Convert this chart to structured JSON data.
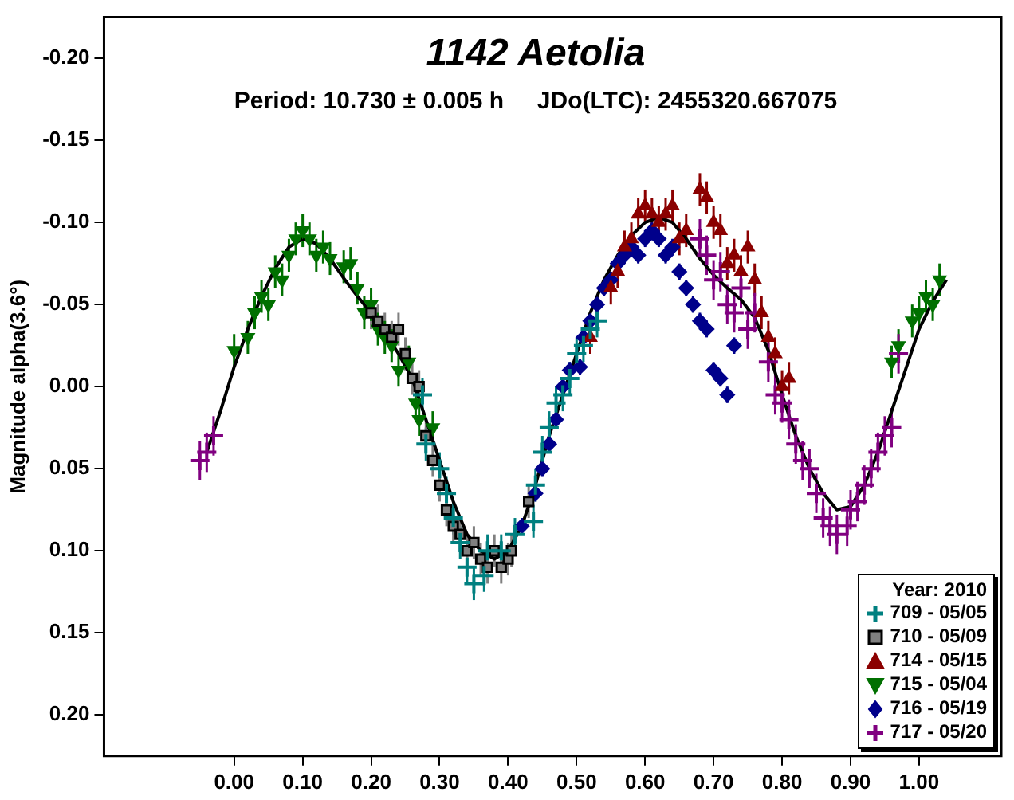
{
  "chart_data": {
    "type": "scatter",
    "title": "1142 Aetolia",
    "subtitle": "Period: 10.730 ± 0.005 h     JDo(LTC): 2455320.667075",
    "ylabel": "Magnitude alpha(3.6°)",
    "legend_title": "Year: 2010",
    "legend": "bottom right",
    "grid": false,
    "xlim": [
      -0.19,
      1.12
    ],
    "ylim": [
      0.225,
      -0.225
    ],
    "xticks": [
      {
        "value": 0,
        "label": "0.00"
      },
      {
        "value": 0.1,
        "label": "0.10"
      },
      {
        "value": 0.2,
        "label": "0.20"
      },
      {
        "value": 0.3,
        "label": "0.30"
      },
      {
        "value": 0.4,
        "label": "0.40"
      },
      {
        "value": 0.5,
        "label": "0.50"
      },
      {
        "value": 0.6,
        "label": "0.60"
      },
      {
        "value": 0.7,
        "label": "0.70"
      },
      {
        "value": 0.8,
        "label": "0.80"
      },
      {
        "value": 0.9,
        "label": "0.90"
      },
      {
        "value": 1,
        "label": "1.00"
      }
    ],
    "yticks": [
      {
        "value": -0.2,
        "label": "-0.20"
      },
      {
        "value": -0.15,
        "label": "-0.15"
      },
      {
        "value": -0.1,
        "label": "-0.10"
      },
      {
        "value": -0.05,
        "label": "-0.05"
      },
      {
        "value": 0,
        "label": "0.00"
      },
      {
        "value": 0.05,
        "label": "0.05"
      },
      {
        "value": 0.1,
        "label": "0.10"
      },
      {
        "value": 0.15,
        "label": "0.15"
      },
      {
        "value": 0.2,
        "label": "0.20"
      }
    ],
    "series": [
      {
        "name": "709 - 05/05",
        "color": "#008080",
        "marker": "cross",
        "x": [
          0.275,
          0.28,
          0.3,
          0.31,
          0.32,
          0.33,
          0.34,
          0.35,
          0.365,
          0.37,
          0.39,
          0.41,
          0.437,
          0.44,
          0.45,
          0.46,
          0.47,
          0.48,
          0.49,
          0.5,
          0.51,
          0.52,
          0.53
        ],
        "values": [
          0.005,
          0.035,
          0.05,
          0.065,
          0.08,
          0.095,
          0.11,
          0.12,
          0.115,
          0.1,
          0.1,
          0.09,
          0.082,
          0.06,
          0.04,
          0.025,
          0.01,
          0.005,
          -0.005,
          -0.02,
          -0.025,
          -0.035,
          -0.04
        ],
        "errors": [
          0.01,
          0.01,
          0.01,
          0.01,
          0.01,
          0.01,
          0.01,
          0.01,
          0.01,
          0.01,
          0.01,
          0.01,
          0.01,
          0.01,
          0.01,
          0.01,
          0.01,
          0.01,
          0.01,
          0.01,
          0.01,
          0.01,
          0.01
        ]
      },
      {
        "name": "710 - 05/09",
        "color": "#808080",
        "marker": "square",
        "x": [
          0.2,
          0.21,
          0.22,
          0.23,
          0.24,
          0.25,
          0.26,
          0.27,
          0.28,
          0.29,
          0.3,
          0.31,
          0.32,
          0.33,
          0.34,
          0.35,
          0.36,
          0.37,
          0.38,
          0.39,
          0.4,
          0.405,
          0.43
        ],
        "values": [
          -0.045,
          -0.04,
          -0.035,
          -0.03,
          -0.035,
          -0.02,
          -0.005,
          0.0,
          0.03,
          0.045,
          0.06,
          0.075,
          0.085,
          0.09,
          0.1,
          0.095,
          0.105,
          0.11,
          0.1,
          0.11,
          0.105,
          0.1,
          0.07
        ],
        "errors": [
          0.01,
          0.01,
          0.01,
          0.01,
          0.01,
          0.01,
          0.01,
          0.01,
          0.01,
          0.01,
          0.01,
          0.01,
          0.01,
          0.01,
          0.01,
          0.01,
          0.01,
          0.01,
          0.01,
          0.01,
          0.01,
          0.01,
          0.01
        ]
      },
      {
        "name": "714 - 05/15",
        "color": "#8b0000",
        "marker": "triangle",
        "x": [
          0.52,
          0.55,
          0.56,
          0.57,
          0.58,
          0.59,
          0.6,
          0.61,
          0.62,
          0.63,
          0.64,
          0.65,
          0.66,
          0.68,
          0.69,
          0.7,
          0.71,
          0.72,
          0.73,
          0.74,
          0.75,
          0.76,
          0.77,
          0.78,
          0.79,
          0.8,
          0.81
        ],
        "values": [
          -0.03,
          -0.06,
          -0.07,
          -0.085,
          -0.09,
          -0.105,
          -0.11,
          -0.105,
          -0.1,
          -0.105,
          -0.11,
          -0.09,
          -0.095,
          -0.12,
          -0.115,
          -0.1,
          -0.095,
          -0.075,
          -0.08,
          -0.07,
          -0.085,
          -0.065,
          -0.045,
          -0.03,
          -0.02,
          0.0,
          -0.005
        ],
        "errors": [
          0.01,
          0.01,
          0.01,
          0.01,
          0.01,
          0.01,
          0.01,
          0.01,
          0.01,
          0.01,
          0.01,
          0.01,
          0.01,
          0.01,
          0.01,
          0.01,
          0.01,
          0.01,
          0.01,
          0.01,
          0.01,
          0.01,
          0.01,
          0.01,
          0.01,
          0.01,
          0.01
        ]
      },
      {
        "name": "715 - 05/04",
        "color": "#007000",
        "marker": "triangle-down",
        "x": [
          0.0,
          0.02,
          0.03,
          0.04,
          0.05,
          0.06,
          0.07,
          0.08,
          0.09,
          0.1,
          0.11,
          0.12,
          0.13,
          0.14,
          0.16,
          0.17,
          0.18,
          0.19,
          0.2,
          0.21,
          0.22,
          0.23,
          0.24,
          0.255,
          0.265,
          0.27,
          0.29,
          0.96,
          0.97,
          0.99,
          1.0,
          1.01,
          1.02,
          1.03
        ],
        "values": [
          -0.022,
          -0.03,
          -0.045,
          -0.055,
          -0.05,
          -0.07,
          -0.065,
          -0.08,
          -0.09,
          -0.095,
          -0.09,
          -0.08,
          -0.085,
          -0.078,
          -0.073,
          -0.075,
          -0.06,
          -0.045,
          -0.05,
          -0.035,
          -0.03,
          -0.025,
          -0.01,
          -0.015,
          0.01,
          0.02,
          0.025,
          -0.015,
          -0.025,
          -0.04,
          -0.045,
          -0.055,
          -0.05,
          -0.065
        ],
        "errors": [
          0.01,
          0.01,
          0.01,
          0.01,
          0.01,
          0.01,
          0.01,
          0.01,
          0.01,
          0.01,
          0.01,
          0.01,
          0.01,
          0.01,
          0.01,
          0.01,
          0.01,
          0.01,
          0.01,
          0.01,
          0.01,
          0.01,
          0.01,
          0.01,
          0.01,
          0.01,
          0.01,
          0.01,
          0.01,
          0.01,
          0.01,
          0.01,
          0.01,
          0.01
        ]
      },
      {
        "name": "716 - 05/19",
        "color": "#00008b",
        "marker": "diamond",
        "x": [
          0.42,
          0.44,
          0.45,
          0.46,
          0.47,
          0.48,
          0.49,
          0.505,
          0.51,
          0.52,
          0.53,
          0.54,
          0.55,
          0.56,
          0.57,
          0.58,
          0.59,
          0.6,
          0.61,
          0.62,
          0.63,
          0.64,
          0.65,
          0.66,
          0.67,
          0.68,
          0.69,
          0.7,
          0.71,
          0.72,
          0.73
        ],
        "values": [
          0.085,
          0.065,
          0.05,
          0.035,
          0.02,
          0.0,
          -0.01,
          -0.012,
          -0.03,
          -0.04,
          -0.05,
          -0.06,
          -0.065,
          -0.075,
          -0.08,
          -0.085,
          -0.08,
          -0.09,
          -0.095,
          -0.09,
          -0.08,
          -0.085,
          -0.07,
          -0.06,
          -0.05,
          -0.04,
          -0.035,
          -0.01,
          -0.005,
          0.005,
          -0.025
        ],
        "errors": [
          0.005,
          0.005,
          0.005,
          0.005,
          0.005,
          0.005,
          0.005,
          0.005,
          0.005,
          0.005,
          0.005,
          0.005,
          0.005,
          0.005,
          0.005,
          0.005,
          0.005,
          0.005,
          0.005,
          0.005,
          0.005,
          0.005,
          0.005,
          0.005,
          0.005,
          0.005,
          0.005,
          0.005,
          0.005,
          0.005,
          0.005
        ]
      },
      {
        "name": "717 - 05/20",
        "color": "#800080",
        "marker": "cross",
        "x": [
          -0.05,
          -0.04,
          -0.03,
          0.68,
          0.69,
          0.7,
          0.71,
          0.72,
          0.73,
          0.74,
          0.75,
          0.76,
          0.78,
          0.79,
          0.8,
          0.81,
          0.82,
          0.83,
          0.84,
          0.85,
          0.86,
          0.87,
          0.88,
          0.895,
          0.9,
          0.91,
          0.92,
          0.93,
          0.94,
          0.95,
          0.96,
          0.97
        ],
        "values": [
          0.045,
          0.04,
          0.03,
          -0.09,
          -0.08,
          -0.065,
          -0.07,
          -0.05,
          -0.045,
          -0.06,
          -0.035,
          -0.045,
          -0.015,
          0.005,
          0.01,
          0.02,
          0.035,
          0.045,
          0.05,
          0.065,
          0.08,
          0.085,
          0.09,
          0.085,
          0.075,
          0.07,
          0.06,
          0.05,
          0.04,
          0.03,
          0.025,
          -0.02
        ],
        "errors": [
          0.012,
          0.012,
          0.012,
          0.012,
          0.012,
          0.012,
          0.012,
          0.012,
          0.012,
          0.012,
          0.012,
          0.012,
          0.012,
          0.012,
          0.012,
          0.012,
          0.012,
          0.012,
          0.012,
          0.012,
          0.012,
          0.012,
          0.012,
          0.012,
          0.012,
          0.012,
          0.012,
          0.012,
          0.012,
          0.012,
          0.012,
          0.012
        ]
      },
      {
        "type": "line",
        "color": "#000000",
        "marker": "none",
        "line_style": "solid",
        "x": [
          -0.04,
          -0.02,
          0.0,
          0.02,
          0.04,
          0.06,
          0.08,
          0.1,
          0.12,
          0.14,
          0.16,
          0.18,
          0.2,
          0.22,
          0.24,
          0.26,
          0.28,
          0.3,
          0.32,
          0.34,
          0.36,
          0.38,
          0.4,
          0.42,
          0.44,
          0.46,
          0.48,
          0.5,
          0.52,
          0.54,
          0.56,
          0.58,
          0.6,
          0.62,
          0.64,
          0.66,
          0.68,
          0.7,
          0.72,
          0.74,
          0.76,
          0.78,
          0.8,
          0.82,
          0.84,
          0.86,
          0.88,
          0.9,
          0.92,
          0.94,
          0.96,
          0.98,
          1.0,
          1.02,
          1.04
        ],
        "values": [
          0.04,
          0.015,
          -0.012,
          -0.035,
          -0.055,
          -0.072,
          -0.085,
          -0.09,
          -0.087,
          -0.078,
          -0.066,
          -0.055,
          -0.045,
          -0.033,
          -0.02,
          -0.005,
          0.02,
          0.045,
          0.07,
          0.09,
          0.1,
          0.105,
          0.1,
          0.085,
          0.06,
          0.03,
          0.005,
          -0.02,
          -0.045,
          -0.065,
          -0.08,
          -0.092,
          -0.1,
          -0.103,
          -0.1,
          -0.09,
          -0.078,
          -0.068,
          -0.06,
          -0.053,
          -0.042,
          -0.022,
          0.005,
          0.03,
          0.05,
          0.065,
          0.075,
          0.073,
          0.06,
          0.04,
          0.015,
          -0.01,
          -0.035,
          -0.052,
          -0.065
        ]
      }
    ]
  }
}
